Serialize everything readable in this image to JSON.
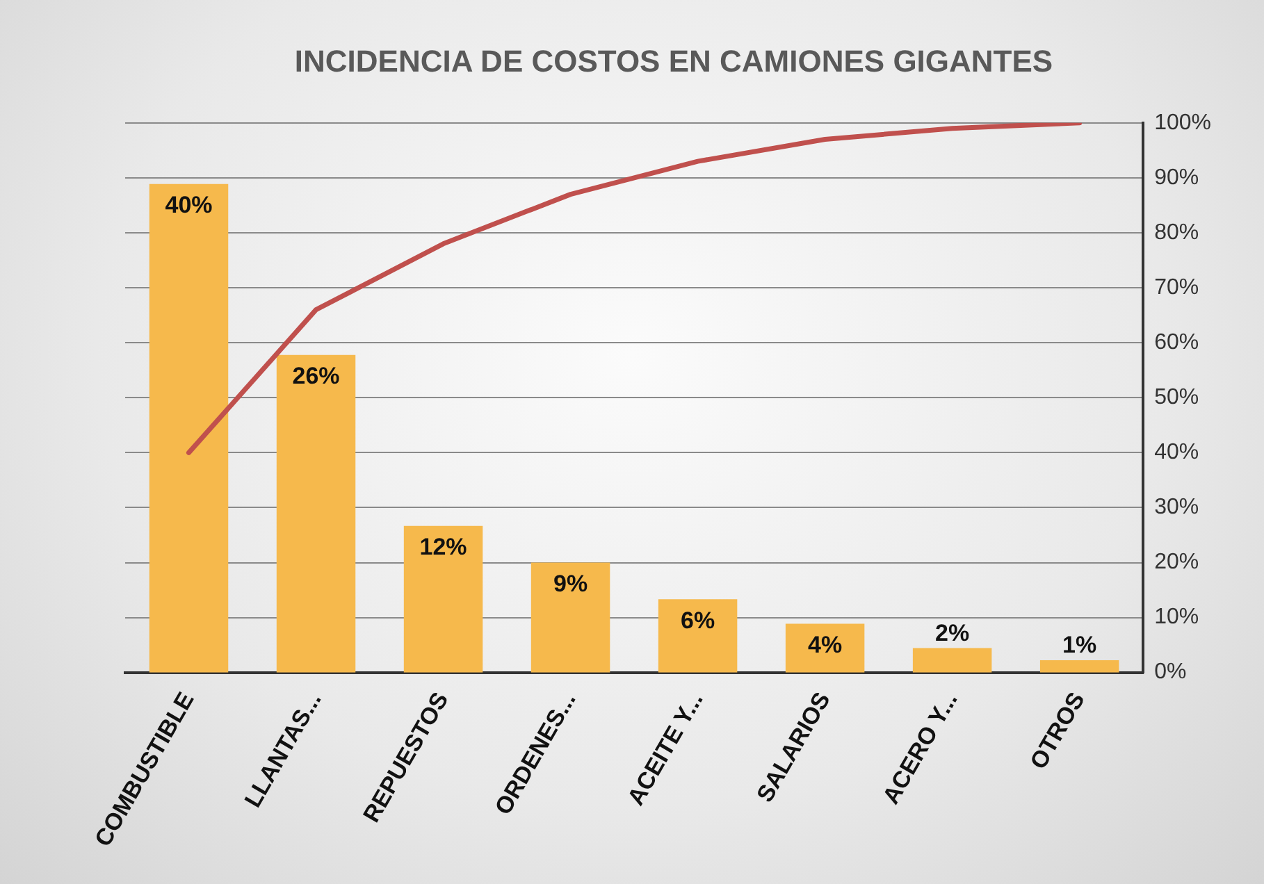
{
  "chart_data": {
    "type": "bar",
    "title": "INCIDENCIA DE COSTOS EN CAMIONES GIGANTES",
    "categories": [
      "COMBUSTIBLE",
      "LLANTAS...",
      "REPUESTOS",
      "ORDENES...",
      "ACEITE Y...",
      "SALARIOS",
      "ACERO Y...",
      "OTROS"
    ],
    "series": [
      {
        "color": "#f6b94c",
        "values": [
          40,
          26,
          12,
          9,
          6,
          4,
          2,
          1
        ],
        "value_labels": [
          "40%",
          "26%",
          "12%",
          "9%",
          "6%",
          "4%",
          "2%",
          "1%"
        ]
      },
      {
        "type": "line",
        "axis": "y2",
        "color": "#c0504d",
        "values": [
          40,
          66,
          78,
          87,
          93,
          97,
          99,
          100
        ]
      }
    ],
    "y2lim": [
      0,
      100
    ],
    "y2ticks": [
      {
        "value": 0,
        "label": "0%"
      },
      {
        "value": 10,
        "label": "10%"
      },
      {
        "value": 20,
        "label": "20%"
      },
      {
        "value": 30,
        "label": "30%"
      },
      {
        "value": 40,
        "label": "40%"
      },
      {
        "value": 50,
        "label": "50%"
      },
      {
        "value": 60,
        "label": "60%"
      },
      {
        "value": 70,
        "label": "70%"
      },
      {
        "value": 80,
        "label": "80%"
      },
      {
        "value": 90,
        "label": "90%"
      },
      {
        "value": 100,
        "label": "100%"
      }
    ],
    "grid": true,
    "marker": "none",
    "legend": false
  }
}
